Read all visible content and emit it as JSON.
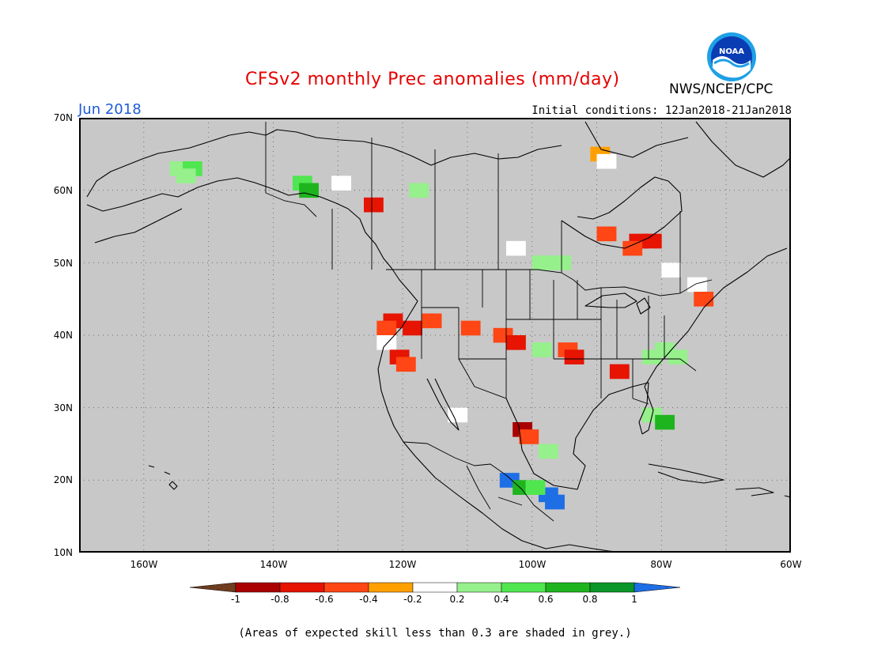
{
  "header": {
    "title": "CFSv2 monthly Prec anomalies (mm/day)",
    "agency": "NWS/NCEP/CPC",
    "month": "Jun 2018",
    "initial_conditions": "Initial conditions: 12Jan2018-21Jan2018",
    "logo_text": "NOAA"
  },
  "map": {
    "background_color": "#c8c8c8",
    "lat_range": [
      10,
      70
    ],
    "lon_range": [
      -170,
      -60
    ],
    "lat_labels": [
      "70N",
      "60N",
      "50N",
      "40N",
      "30N",
      "20N",
      "10N"
    ],
    "lon_labels": [
      "160W",
      "140W",
      "120W",
      "100W",
      "80W",
      "60W"
    ],
    "gridlines": "dotted",
    "anomaly_cells": [
      {
        "lat": 64,
        "lon": -156,
        "v": 0.3
      },
      {
        "lat": 64,
        "lon": -154,
        "v": 0.5
      },
      {
        "lat": 63,
        "lon": -155,
        "v": 0.4
      },
      {
        "lat": 62,
        "lon": -137,
        "v": 0.5
      },
      {
        "lat": 61,
        "lon": -136,
        "v": 0.7
      },
      {
        "lat": 62,
        "lon": -131,
        "v": 0.1
      },
      {
        "lat": 61,
        "lon": -119,
        "v": 0.3
      },
      {
        "lat": 59,
        "lon": -126,
        "v": -0.6
      },
      {
        "lat": 66,
        "lon": -91,
        "v": -0.3
      },
      {
        "lat": 65,
        "lon": -90,
        "v": 0.0
      },
      {
        "lat": 55,
        "lon": -90,
        "v": -0.4
      },
      {
        "lat": 54,
        "lon": -85,
        "v": -0.6
      },
      {
        "lat": 54,
        "lon": -83,
        "v": -0.7
      },
      {
        "lat": 53,
        "lon": -86,
        "v": -0.5
      },
      {
        "lat": 53,
        "lon": -104,
        "v": 0.0
      },
      {
        "lat": 51,
        "lon": -100,
        "v": 0.3
      },
      {
        "lat": 51,
        "lon": -97,
        "v": 0.3
      },
      {
        "lat": 50,
        "lon": -80,
        "v": 0.0
      },
      {
        "lat": 48,
        "lon": -76,
        "v": 0.0
      },
      {
        "lat": 46,
        "lon": -75,
        "v": -0.4
      },
      {
        "lat": 43,
        "lon": -123,
        "v": -0.6
      },
      {
        "lat": 42,
        "lon": -124,
        "v": -0.4
      },
      {
        "lat": 42,
        "lon": -120,
        "v": -0.6
      },
      {
        "lat": 43,
        "lon": -117,
        "v": -0.4
      },
      {
        "lat": 42,
        "lon": -111,
        "v": -0.4
      },
      {
        "lat": 41,
        "lon": -106,
        "v": -0.4
      },
      {
        "lat": 40,
        "lon": -104,
        "v": -0.6
      },
      {
        "lat": 40,
        "lon": -124,
        "v": 0.0
      },
      {
        "lat": 38,
        "lon": -122,
        "v": -0.6
      },
      {
        "lat": 37,
        "lon": -121,
        "v": -0.4
      },
      {
        "lat": 39,
        "lon": -96,
        "v": -0.5
      },
      {
        "lat": 38,
        "lon": -95,
        "v": -0.7
      },
      {
        "lat": 39,
        "lon": -100,
        "v": 0.3
      },
      {
        "lat": 39,
        "lon": -81,
        "v": 0.4
      },
      {
        "lat": 38,
        "lon": -79,
        "v": 0.3
      },
      {
        "lat": 38,
        "lon": -83,
        "v": 0.3
      },
      {
        "lat": 36,
        "lon": -88,
        "v": -0.6
      },
      {
        "lat": 30,
        "lon": -83,
        "v": 0.4
      },
      {
        "lat": 29,
        "lon": -81,
        "v": 0.8
      },
      {
        "lat": 30,
        "lon": -113,
        "v": 0.0
      },
      {
        "lat": 28,
        "lon": -103,
        "v": -0.8
      },
      {
        "lat": 27,
        "lon": -102,
        "v": -0.4
      },
      {
        "lat": 25,
        "lon": -99,
        "v": 0.4
      },
      {
        "lat": 21,
        "lon": -105,
        "v": 1.0
      },
      {
        "lat": 20,
        "lon": -103,
        "v": 0.7
      },
      {
        "lat": 19,
        "lon": -99,
        "v": 1.0
      },
      {
        "lat": 18,
        "lon": -98,
        "v": 1.0
      },
      {
        "lat": 20,
        "lon": -101,
        "v": 0.5
      }
    ]
  },
  "colorbar": {
    "labels": [
      "-1",
      "-0.8",
      "-0.6",
      "-0.4",
      "-0.2",
      "0.2",
      "0.4",
      "0.6",
      "0.8",
      "1"
    ],
    "colors": [
      "#6e3c1e",
      "#aa0000",
      "#e61400",
      "#ff4614",
      "#ffa000",
      "#ffffff",
      "#96f08c",
      "#50e650",
      "#1eb41e",
      "#0a9628",
      "#1e6ee6"
    ]
  },
  "footnote": "(Areas of expected skill less than 0.3 are shaded in grey.)"
}
